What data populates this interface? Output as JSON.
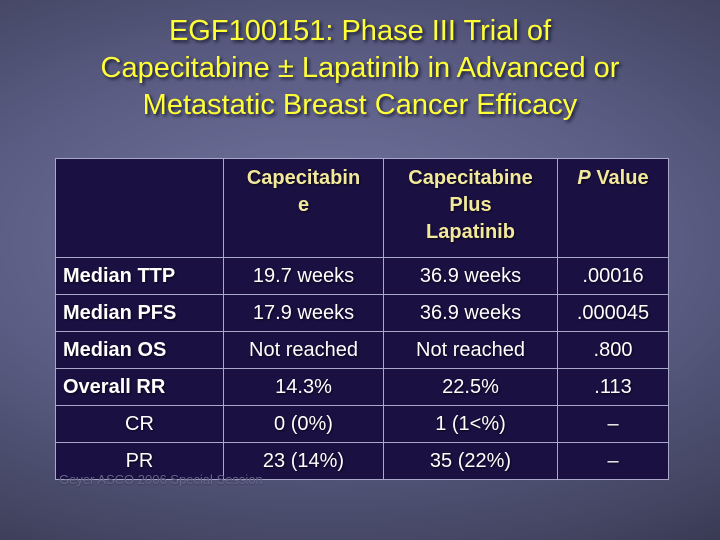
{
  "slide": {
    "title": "EGF100151: Phase III Trial of\nCapecitabine ± Lapatinib in Advanced or\nMetastatic Breast Cancer Efficacy",
    "footer": "Geyer ASCO 2006 Special Session"
  },
  "table": {
    "header": {
      "capecitabine": "Capecitabin\ne",
      "combo": "Capecitabine\nPlus\nLapatinib",
      "p_italic": "P",
      "p_rest": " Value"
    },
    "rows": [
      {
        "label": "Median TTP",
        "capecitabine": "19.7 weeks",
        "combo": "36.9 weeks",
        "p": ".00016"
      },
      {
        "label": "Median PFS",
        "capecitabine": "17.9 weeks",
        "combo": "36.9 weeks",
        "p": ".000045"
      },
      {
        "label": "Median OS",
        "capecitabine": "Not reached",
        "combo": "Not reached",
        "p": ".800"
      },
      {
        "label": "Overall RR",
        "capecitabine": "14.3%",
        "combo": "22.5%",
        "p": ".113"
      },
      {
        "label": "CR",
        "capecitabine": "0 (0%)",
        "combo": "1 (1<%)",
        "p": "–"
      },
      {
        "label": "PR",
        "capecitabine": "23 (14%)",
        "combo": "35 (22%)",
        "p": "–"
      }
    ]
  },
  "colors": {
    "title_text": "#ffff38",
    "header_text": "#f2e99d",
    "body_text": "#ffffff",
    "cell_background": "#1b1042",
    "table_border": "#a8a8c8",
    "footer_text": "#63658a",
    "background_center": "#73759f",
    "background_edge": "#2b2c42"
  }
}
